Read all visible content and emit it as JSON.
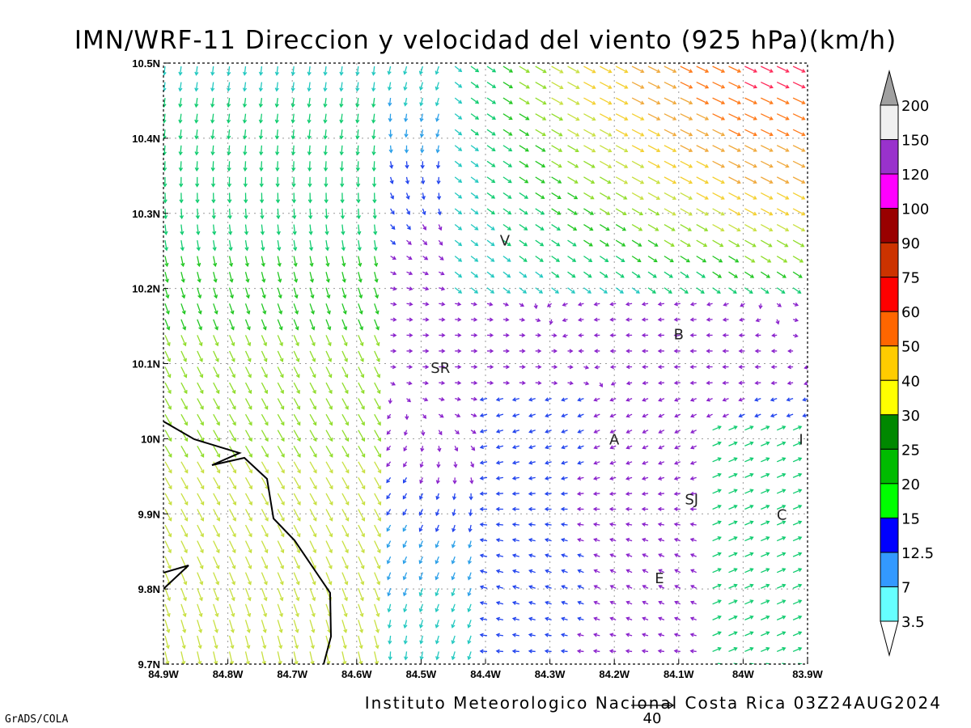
{
  "title": "IMN/WRF-11 Direccion y velocidad del viento (925 hPa)(km/h)",
  "footer": "Instituto Meteorologico Nacional Costa Rica 03Z24AUG2024",
  "software": "GrADS/COLA",
  "reference_vector_label": "40",
  "x_ticks": [
    "84.9W",
    "84.8W",
    "84.7W",
    "84.6W",
    "84.5W",
    "84.4W",
    "84.3W",
    "84.2W",
    "84.1W",
    "84W",
    "83.9W"
  ],
  "y_ticks": [
    "10.5N",
    "10.4N",
    "10.3N",
    "10.2N",
    "10.1N",
    "10N",
    "9.9N",
    "9.8N",
    "9.7N"
  ],
  "colorbar": {
    "labels": [
      "200",
      "150",
      "120",
      "100",
      "90",
      "75",
      "60",
      "50",
      "40",
      "30",
      "25",
      "20",
      "15",
      "12.5",
      "7",
      "3.5"
    ],
    "colors": [
      "#a0a0a0",
      "#f0f0f0",
      "#9932cc",
      "#ff00ff",
      "#990000",
      "#cc3300",
      "#ff0000",
      "#ff6600",
      "#ffcc00",
      "#ffff00",
      "#008800",
      "#00bb00",
      "#00ff00",
      "#0000ff",
      "#3399ff",
      "#66ffff"
    ]
  },
  "cities": [
    {
      "label": "V",
      "lon": -84.37,
      "lat": 10.265
    },
    {
      "label": "B",
      "lon": -84.1,
      "lat": 10.14
    },
    {
      "label": "SR",
      "lon": -84.47,
      "lat": 10.095
    },
    {
      "label": "A",
      "lon": -84.2,
      "lat": 10.0
    },
    {
      "label": "I",
      "lon": -83.91,
      "lat": 10.0
    },
    {
      "label": "SJ",
      "lon": -84.08,
      "lat": 9.92
    },
    {
      "label": "C",
      "lon": -83.94,
      "lat": 9.9
    },
    {
      "label": "E",
      "lon": -84.13,
      "lat": 9.815
    }
  ],
  "domain": {
    "lon_min": -84.9,
    "lon_max": -83.9,
    "lat_min": 9.7,
    "lat_max": 10.5
  }
}
